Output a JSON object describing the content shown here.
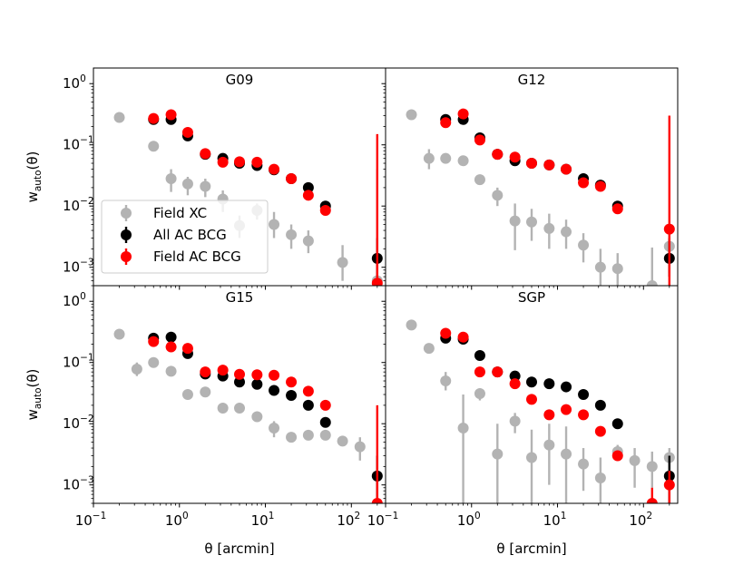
{
  "figure": {
    "x_label_html": "θ [arcmin]",
    "y_label_main": "w",
    "y_label_sub": "auto",
    "y_label_tail": "(θ)"
  },
  "legend": [
    {
      "label": "Field XC",
      "color": "#b3b3b3"
    },
    {
      "label": "All AC BCG",
      "color": "#000000"
    },
    {
      "label": "Field AC BCG",
      "color": "#ff0000"
    }
  ],
  "colors": {
    "field_xc": "#b3b3b3",
    "all_ac_bcg": "#000000",
    "field_ac_bcg": "#ff0000"
  },
  "chart_data": [
    {
      "type": "scatter",
      "title": "G09",
      "xscale": "log",
      "yscale": "log",
      "xlim": [
        0.1,
        250
      ],
      "ylim": [
        0.0005,
        1.8
      ],
      "xlabel": "",
      "ylabel": "w_auto(θ)",
      "legend": "lower-left",
      "series": [
        {
          "name": "Field XC",
          "color": "#b3b3b3",
          "points": [
            {
              "x": 0.2,
              "y": 0.28
            },
            {
              "x": 0.5,
              "y": 0.095
            },
            {
              "x": 0.8,
              "y": 0.028,
              "ylo": 0.017,
              "yhi": 0.04
            },
            {
              "x": 1.25,
              "y": 0.023,
              "ylo": 0.015,
              "yhi": 0.03
            },
            {
              "x": 2.0,
              "y": 0.021,
              "ylo": 0.014,
              "yhi": 0.028
            },
            {
              "x": 3.2,
              "y": 0.013,
              "ylo": 0.008,
              "yhi": 0.018
            },
            {
              "x": 5.0,
              "y": 0.0048,
              "ylo": 0.003,
              "yhi": 0.007
            },
            {
              "x": 8.0,
              "y": 0.0085,
              "ylo": 0.006,
              "yhi": 0.011
            },
            {
              "x": 12.6,
              "y": 0.005,
              "ylo": 0.003,
              "yhi": 0.008
            },
            {
              "x": 20.0,
              "y": 0.0034,
              "ylo": 0.002,
              "yhi": 0.005
            },
            {
              "x": 31.6,
              "y": 0.0027,
              "ylo": 0.0017,
              "yhi": 0.004
            },
            {
              "x": 79.0,
              "y": 0.0012,
              "ylo": 0.0006,
              "yhi": 0.0023
            },
            {
              "x": 200.0,
              "y": 0.0006,
              "ylo": 0.0005,
              "yhi": 0.04
            }
          ]
        },
        {
          "name": "All AC BCG",
          "color": "#000000",
          "points": [
            {
              "x": 0.5,
              "y": 0.26
            },
            {
              "x": 0.8,
              "y": 0.26
            },
            {
              "x": 1.25,
              "y": 0.14
            },
            {
              "x": 2.0,
              "y": 0.07
            },
            {
              "x": 3.2,
              "y": 0.06
            },
            {
              "x": 5.0,
              "y": 0.05
            },
            {
              "x": 8.0,
              "y": 0.046
            },
            {
              "x": 12.6,
              "y": 0.039
            },
            {
              "x": 20.0,
              "y": 0.028
            },
            {
              "x": 31.6,
              "y": 0.02
            },
            {
              "x": 50.0,
              "y": 0.01
            },
            {
              "x": 200.0,
              "y": 0.0014,
              "ylo": 0.0007,
              "yhi": 0.003
            }
          ]
        },
        {
          "name": "Field AC BCG",
          "color": "#ff0000",
          "points": [
            {
              "x": 0.5,
              "y": 0.27
            },
            {
              "x": 0.8,
              "y": 0.31
            },
            {
              "x": 1.25,
              "y": 0.16
            },
            {
              "x": 2.0,
              "y": 0.072
            },
            {
              "x": 3.2,
              "y": 0.052
            },
            {
              "x": 5.0,
              "y": 0.053
            },
            {
              "x": 8.0,
              "y": 0.052
            },
            {
              "x": 12.6,
              "y": 0.04
            },
            {
              "x": 20.0,
              "y": 0.028
            },
            {
              "x": 31.6,
              "y": 0.015
            },
            {
              "x": 50.0,
              "y": 0.0085
            },
            {
              "x": 200.0,
              "y": 0.00055,
              "ylo": 0.0005,
              "yhi": 0.15
            }
          ]
        }
      ]
    },
    {
      "type": "scatter",
      "title": "G12",
      "xscale": "log",
      "yscale": "log",
      "xlim": [
        0.1,
        250
      ],
      "ylim": [
        0.0005,
        1.8
      ],
      "xlabel": "",
      "ylabel": "",
      "series": [
        {
          "name": "Field XC",
          "color": "#b3b3b3",
          "points": [
            {
              "x": 0.2,
              "y": 0.31
            },
            {
              "x": 0.32,
              "y": 0.06,
              "ylo": 0.04,
              "yhi": 0.085
            },
            {
              "x": 0.5,
              "y": 0.06
            },
            {
              "x": 0.8,
              "y": 0.055
            },
            {
              "x": 1.25,
              "y": 0.027
            },
            {
              "x": 2.0,
              "y": 0.015,
              "ylo": 0.01,
              "yhi": 0.02
            },
            {
              "x": 3.2,
              "y": 0.0057,
              "ylo": 0.0019,
              "yhi": 0.011
            },
            {
              "x": 5.0,
              "y": 0.0055,
              "ylo": 0.0027,
              "yhi": 0.009
            },
            {
              "x": 8.0,
              "y": 0.0043,
              "ylo": 0.002,
              "yhi": 0.0075
            },
            {
              "x": 12.6,
              "y": 0.0038,
              "ylo": 0.002,
              "yhi": 0.006
            },
            {
              "x": 20.0,
              "y": 0.0023,
              "ylo": 0.0012,
              "yhi": 0.0036
            },
            {
              "x": 31.6,
              "y": 0.001,
              "ylo": 0.0005,
              "yhi": 0.002
            },
            {
              "x": 50.0,
              "y": 0.00095,
              "ylo": 0.0005,
              "yhi": 0.0017
            },
            {
              "x": 126.0,
              "y": 0.0005,
              "ylo": 0.0005,
              "yhi": 0.0021
            },
            {
              "x": 200.0,
              "y": 0.0022,
              "ylo": 0.0008,
              "yhi": 0.004
            }
          ]
        },
        {
          "name": "All AC BCG",
          "color": "#000000",
          "points": [
            {
              "x": 0.5,
              "y": 0.26
            },
            {
              "x": 0.8,
              "y": 0.26
            },
            {
              "x": 1.25,
              "y": 0.13
            },
            {
              "x": 2.0,
              "y": 0.07
            },
            {
              "x": 3.2,
              "y": 0.055
            },
            {
              "x": 5.0,
              "y": 0.05
            },
            {
              "x": 8.0,
              "y": 0.047
            },
            {
              "x": 12.6,
              "y": 0.04
            },
            {
              "x": 20.0,
              "y": 0.028
            },
            {
              "x": 31.6,
              "y": 0.022
            },
            {
              "x": 50.0,
              "y": 0.01
            },
            {
              "x": 200.0,
              "y": 0.0014,
              "ylo": 0.0007,
              "yhi": 0.003
            }
          ]
        },
        {
          "name": "Field AC BCG",
          "color": "#ff0000",
          "points": [
            {
              "x": 0.5,
              "y": 0.23
            },
            {
              "x": 0.8,
              "y": 0.32
            },
            {
              "x": 1.25,
              "y": 0.12
            },
            {
              "x": 2.0,
              "y": 0.07
            },
            {
              "x": 3.2,
              "y": 0.063
            },
            {
              "x": 5.0,
              "y": 0.05
            },
            {
              "x": 8.0,
              "y": 0.047
            },
            {
              "x": 12.6,
              "y": 0.04
            },
            {
              "x": 20.0,
              "y": 0.024
            },
            {
              "x": 31.6,
              "y": 0.021
            },
            {
              "x": 50.0,
              "y": 0.009
            },
            {
              "x": 200.0,
              "y": 0.0042,
              "ylo": 0.0005,
              "yhi": 0.3
            }
          ]
        }
      ]
    },
    {
      "type": "scatter",
      "title": "G15",
      "xscale": "log",
      "yscale": "log",
      "xlim": [
        0.1,
        250
      ],
      "ylim": [
        0.0005,
        1.8
      ],
      "xlabel": "θ [arcmin]",
      "ylabel": "w_auto(θ)",
      "series": [
        {
          "name": "Field XC",
          "color": "#b3b3b3",
          "points": [
            {
              "x": 0.2,
              "y": 0.29
            },
            {
              "x": 0.32,
              "y": 0.078,
              "ylo": 0.06,
              "yhi": 0.1
            },
            {
              "x": 0.5,
              "y": 0.1
            },
            {
              "x": 0.8,
              "y": 0.072
            },
            {
              "x": 1.25,
              "y": 0.03
            },
            {
              "x": 2.0,
              "y": 0.033
            },
            {
              "x": 3.2,
              "y": 0.018
            },
            {
              "x": 5.0,
              "y": 0.018
            },
            {
              "x": 8.0,
              "y": 0.013
            },
            {
              "x": 12.6,
              "y": 0.0085,
              "ylo": 0.006,
              "yhi": 0.011
            },
            {
              "x": 20.0,
              "y": 0.006
            },
            {
              "x": 31.6,
              "y": 0.0065
            },
            {
              "x": 50.0,
              "y": 0.0065
            },
            {
              "x": 79.0,
              "y": 0.0052
            },
            {
              "x": 126.0,
              "y": 0.0042,
              "ylo": 0.0025,
              "yhi": 0.006
            },
            {
              "x": 200.0,
              "y": 0.0014,
              "ylo": 0.0005,
              "yhi": 0.003
            }
          ]
        },
        {
          "name": "All AC BCG",
          "color": "#000000",
          "points": [
            {
              "x": 0.5,
              "y": 0.25
            },
            {
              "x": 0.8,
              "y": 0.26
            },
            {
              "x": 1.25,
              "y": 0.14
            },
            {
              "x": 2.0,
              "y": 0.065
            },
            {
              "x": 3.2,
              "y": 0.06
            },
            {
              "x": 5.0,
              "y": 0.048
            },
            {
              "x": 8.0,
              "y": 0.044
            },
            {
              "x": 12.6,
              "y": 0.035
            },
            {
              "x": 20.0,
              "y": 0.029
            },
            {
              "x": 31.6,
              "y": 0.02
            },
            {
              "x": 50.0,
              "y": 0.0105
            },
            {
              "x": 200.0,
              "y": 0.0014,
              "ylo": 0.0005,
              "yhi": 0.003
            }
          ]
        },
        {
          "name": "Field AC BCG",
          "color": "#ff0000",
          "points": [
            {
              "x": 0.5,
              "y": 0.22
            },
            {
              "x": 0.8,
              "y": 0.18
            },
            {
              "x": 1.25,
              "y": 0.17
            },
            {
              "x": 2.0,
              "y": 0.07
            },
            {
              "x": 3.2,
              "y": 0.075
            },
            {
              "x": 5.0,
              "y": 0.064
            },
            {
              "x": 8.0,
              "y": 0.063
            },
            {
              "x": 12.6,
              "y": 0.062
            },
            {
              "x": 20.0,
              "y": 0.048
            },
            {
              "x": 31.6,
              "y": 0.034
            },
            {
              "x": 50.0,
              "y": 0.02
            },
            {
              "x": 200.0,
              "y": 0.0005,
              "ylo": 0.0005,
              "yhi": 0.02
            }
          ]
        }
      ]
    },
    {
      "type": "scatter",
      "title": "SGP",
      "xscale": "log",
      "yscale": "log",
      "xlim": [
        0.1,
        250
      ],
      "ylim": [
        0.0005,
        1.8
      ],
      "xlabel": "θ [arcmin]",
      "ylabel": "",
      "series": [
        {
          "name": "Field XC",
          "color": "#b3b3b3",
          "points": [
            {
              "x": 0.2,
              "y": 0.41
            },
            {
              "x": 0.32,
              "y": 0.17
            },
            {
              "x": 0.5,
              "y": 0.05,
              "ylo": 0.035,
              "yhi": 0.07
            },
            {
              "x": 0.8,
              "y": 0.0085,
              "ylo": 0.0005,
              "yhi": 0.03
            },
            {
              "x": 1.25,
              "y": 0.031,
              "ylo": 0.024,
              "yhi": 0.038
            },
            {
              "x": 2.0,
              "y": 0.0032,
              "ylo": 0.0005,
              "yhi": 0.01
            },
            {
              "x": 3.2,
              "y": 0.011,
              "ylo": 0.007,
              "yhi": 0.015
            },
            {
              "x": 5.0,
              "y": 0.0028,
              "ylo": 0.0005,
              "yhi": 0.008
            },
            {
              "x": 8.0,
              "y": 0.0045,
              "ylo": 0.001,
              "yhi": 0.01
            },
            {
              "x": 12.6,
              "y": 0.0032,
              "ylo": 0.0005,
              "yhi": 0.009
            },
            {
              "x": 20.0,
              "y": 0.0022,
              "ylo": 0.0008,
              "yhi": 0.004
            },
            {
              "x": 31.6,
              "y": 0.0013,
              "ylo": 0.0005,
              "yhi": 0.0028
            },
            {
              "x": 50.0,
              "y": 0.0035,
              "ylo": 0.0025,
              "yhi": 0.0045
            },
            {
              "x": 79.0,
              "y": 0.0025,
              "ylo": 0.0009,
              "yhi": 0.004
            },
            {
              "x": 126.0,
              "y": 0.002,
              "ylo": 0.0009,
              "yhi": 0.0035
            },
            {
              "x": 200.0,
              "y": 0.0028,
              "ylo": 0.0005,
              "yhi": 0.004
            }
          ]
        },
        {
          "name": "All AC BCG",
          "color": "#000000",
          "points": [
            {
              "x": 0.5,
              "y": 0.25
            },
            {
              "x": 0.8,
              "y": 0.24
            },
            {
              "x": 1.25,
              "y": 0.13
            },
            {
              "x": 2.0,
              "y": 0.07
            },
            {
              "x": 3.2,
              "y": 0.06
            },
            {
              "x": 5.0,
              "y": 0.048
            },
            {
              "x": 8.0,
              "y": 0.045
            },
            {
              "x": 12.6,
              "y": 0.04
            },
            {
              "x": 20.0,
              "y": 0.03
            },
            {
              "x": 31.6,
              "y": 0.02
            },
            {
              "x": 50.0,
              "y": 0.01
            },
            {
              "x": 200.0,
              "y": 0.0014,
              "ylo": 0.0005,
              "yhi": 0.003
            }
          ]
        },
        {
          "name": "Field AC BCG",
          "color": "#ff0000",
          "points": [
            {
              "x": 0.5,
              "y": 0.3
            },
            {
              "x": 0.8,
              "y": 0.26
            },
            {
              "x": 1.25,
              "y": 0.07
            },
            {
              "x": 2.0,
              "y": 0.07
            },
            {
              "x": 3.2,
              "y": 0.045
            },
            {
              "x": 5.0,
              "y": 0.025
            },
            {
              "x": 8.0,
              "y": 0.014
            },
            {
              "x": 12.6,
              "y": 0.017
            },
            {
              "x": 20.0,
              "y": 0.014
            },
            {
              "x": 31.6,
              "y": 0.0075
            },
            {
              "x": 50.0,
              "y": 0.003,
              "ylo": 0.0025,
              "yhi": 0.0035
            },
            {
              "x": 126.0,
              "y": 0.0005,
              "ylo": 0.0005,
              "yhi": 0.0009
            },
            {
              "x": 200.0,
              "y": 0.001,
              "ylo": 0.0005,
              "yhi": 0.0017
            }
          ]
        }
      ]
    }
  ]
}
